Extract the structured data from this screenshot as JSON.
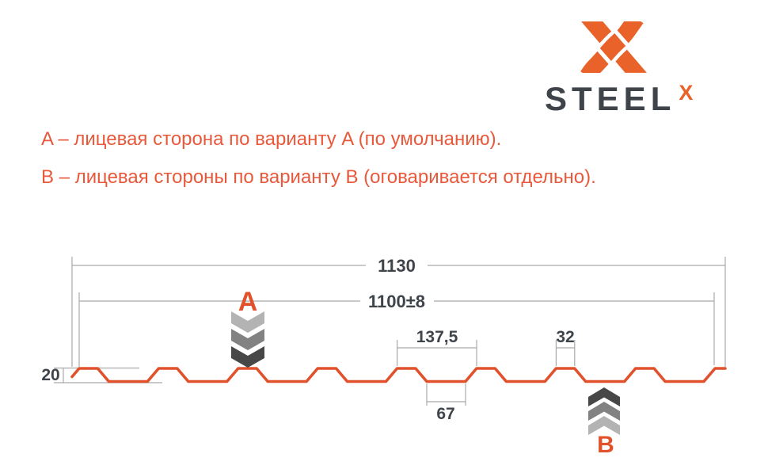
{
  "logo": {
    "brand": "STEEL",
    "sup": "X"
  },
  "notes": {
    "line_a": "A – лицевая сторона по варианту A (по умолчанию).",
    "line_b": "B – лицевая стороны по варианту B (оговаривается отдельно)."
  },
  "diagram": {
    "type": "profiled-sheet-cross-section",
    "marker_a": "A",
    "marker_b": "B",
    "dimensions": {
      "overall_width_mm": "1130",
      "working_width_mm": "1100±8",
      "rib_pitch_mm": "137,5",
      "rib_top_mm": "32",
      "valley_mm": "67",
      "height_mm": "20"
    }
  },
  "colors": {
    "brand_orange": "#e8622a",
    "profile_orange": "#e0512c",
    "note_orange": "#e8593c",
    "label_dark": "#3f444b",
    "dim_gray": "#a9a9a9",
    "chevron_light": "#b3b3b3",
    "chevron_mid": "#828282",
    "chevron_dark": "#474747"
  }
}
